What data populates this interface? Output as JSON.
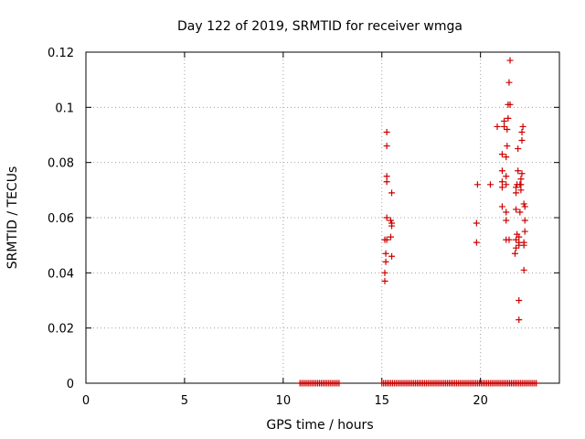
{
  "chart_data": {
    "type": "scatter",
    "title": "Day 122 of 2019, SRMTID for receiver wmga",
    "xlabel": "GPS time / hours",
    "ylabel": "SRMTID / TECUs",
    "xlim": [
      0,
      24
    ],
    "ylim": [
      0,
      0.12
    ],
    "xticks": [
      0,
      5,
      10,
      15,
      20
    ],
    "xtick_labels": [
      "0",
      "5",
      "10",
      "15",
      "20"
    ],
    "yticks": [
      0,
      0.02,
      0.04,
      0.06,
      0.08,
      0.1,
      0.12
    ],
    "ytick_labels": [
      "0",
      "0.02",
      "0.04",
      "0.06",
      "0.08",
      "0.1",
      "0.12"
    ],
    "grid": true,
    "marker": "plus",
    "color": "#cc0000",
    "zero_series": {
      "description": "dense run of samples at 0",
      "segments": [
        [
          10.85,
          12.85
        ],
        [
          15.0,
          22.9
        ]
      ],
      "step": 0.09
    },
    "points": [
      [
        15.15,
        0.037
      ],
      [
        15.15,
        0.04
      ],
      [
        15.2,
        0.044
      ],
      [
        15.2,
        0.047
      ],
      [
        15.25,
        0.052
      ],
      [
        15.15,
        0.052
      ],
      [
        15.25,
        0.06
      ],
      [
        15.25,
        0.073
      ],
      [
        15.25,
        0.075
      ],
      [
        15.25,
        0.086
      ],
      [
        15.25,
        0.091
      ],
      [
        15.5,
        0.046
      ],
      [
        15.45,
        0.053
      ],
      [
        15.5,
        0.057
      ],
      [
        15.5,
        0.058
      ],
      [
        15.45,
        0.059
      ],
      [
        15.5,
        0.069
      ],
      [
        19.8,
        0.051
      ],
      [
        19.8,
        0.058
      ],
      [
        19.85,
        0.072
      ],
      [
        20.5,
        0.072
      ],
      [
        20.85,
        0.093
      ],
      [
        21.1,
        0.064
      ],
      [
        21.1,
        0.071
      ],
      [
        21.1,
        0.073
      ],
      [
        21.1,
        0.077
      ],
      [
        21.1,
        0.083
      ],
      [
        21.2,
        0.093
      ],
      [
        21.2,
        0.095
      ],
      [
        21.3,
        0.052
      ],
      [
        21.3,
        0.059
      ],
      [
        21.3,
        0.062
      ],
      [
        21.3,
        0.072
      ],
      [
        21.3,
        0.075
      ],
      [
        21.3,
        0.082
      ],
      [
        21.35,
        0.086
      ],
      [
        21.35,
        0.092
      ],
      [
        21.4,
        0.096
      ],
      [
        21.4,
        0.101
      ],
      [
        21.45,
        0.052
      ],
      [
        21.45,
        0.109
      ],
      [
        21.5,
        0.117
      ],
      [
        21.5,
        0.101
      ],
      [
        21.75,
        0.047
      ],
      [
        21.8,
        0.049
      ],
      [
        21.8,
        0.052
      ],
      [
        21.85,
        0.054
      ],
      [
        21.8,
        0.063
      ],
      [
        21.8,
        0.069
      ],
      [
        21.8,
        0.071
      ],
      [
        21.85,
        0.072
      ],
      [
        21.9,
        0.077
      ],
      [
        21.9,
        0.085
      ],
      [
        21.95,
        0.05
      ],
      [
        21.95,
        0.051
      ],
      [
        21.95,
        0.053
      ],
      [
        22.0,
        0.062
      ],
      [
        22.0,
        0.072
      ],
      [
        22.05,
        0.074
      ],
      [
        21.95,
        0.03
      ],
      [
        21.95,
        0.023
      ],
      [
        22.05,
        0.07
      ],
      [
        22.05,
        0.072
      ],
      [
        22.1,
        0.076
      ],
      [
        22.1,
        0.088
      ],
      [
        22.1,
        0.091
      ],
      [
        22.15,
        0.093
      ],
      [
        22.2,
        0.041
      ],
      [
        22.2,
        0.05
      ],
      [
        22.2,
        0.051
      ],
      [
        22.25,
        0.055
      ],
      [
        22.25,
        0.059
      ],
      [
        22.25,
        0.064
      ],
      [
        22.2,
        0.065
      ]
    ]
  }
}
